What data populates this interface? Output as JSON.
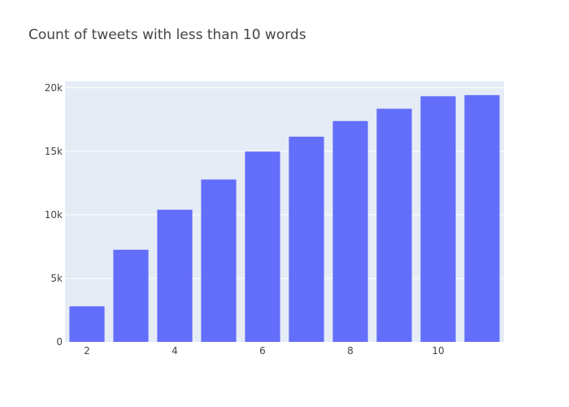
{
  "chart_data": {
    "type": "bar",
    "title": "Count of tweets with less than 10 words",
    "xlabel": "",
    "ylabel": "",
    "x": [
      2,
      3,
      4,
      5,
      6,
      7,
      8,
      9,
      10,
      11
    ],
    "values": [
      2800,
      7250,
      10400,
      12780,
      14980,
      16150,
      17380,
      18350,
      19330,
      19420
    ],
    "xlim": [
      1.5,
      11.5
    ],
    "ylim": [
      0,
      20500
    ],
    "x_ticks": [
      2,
      4,
      6,
      8,
      10
    ],
    "y_ticks": [
      0,
      5000,
      10000,
      15000,
      20000
    ],
    "y_tick_labels": [
      "0",
      "5k",
      "10k",
      "15k",
      "20k"
    ],
    "grid": true,
    "legend": "none",
    "colors": {
      "bar": "#636efa",
      "plot_background": "#e5ecf6",
      "grid": "#ffffff",
      "text": "#444444"
    }
  }
}
